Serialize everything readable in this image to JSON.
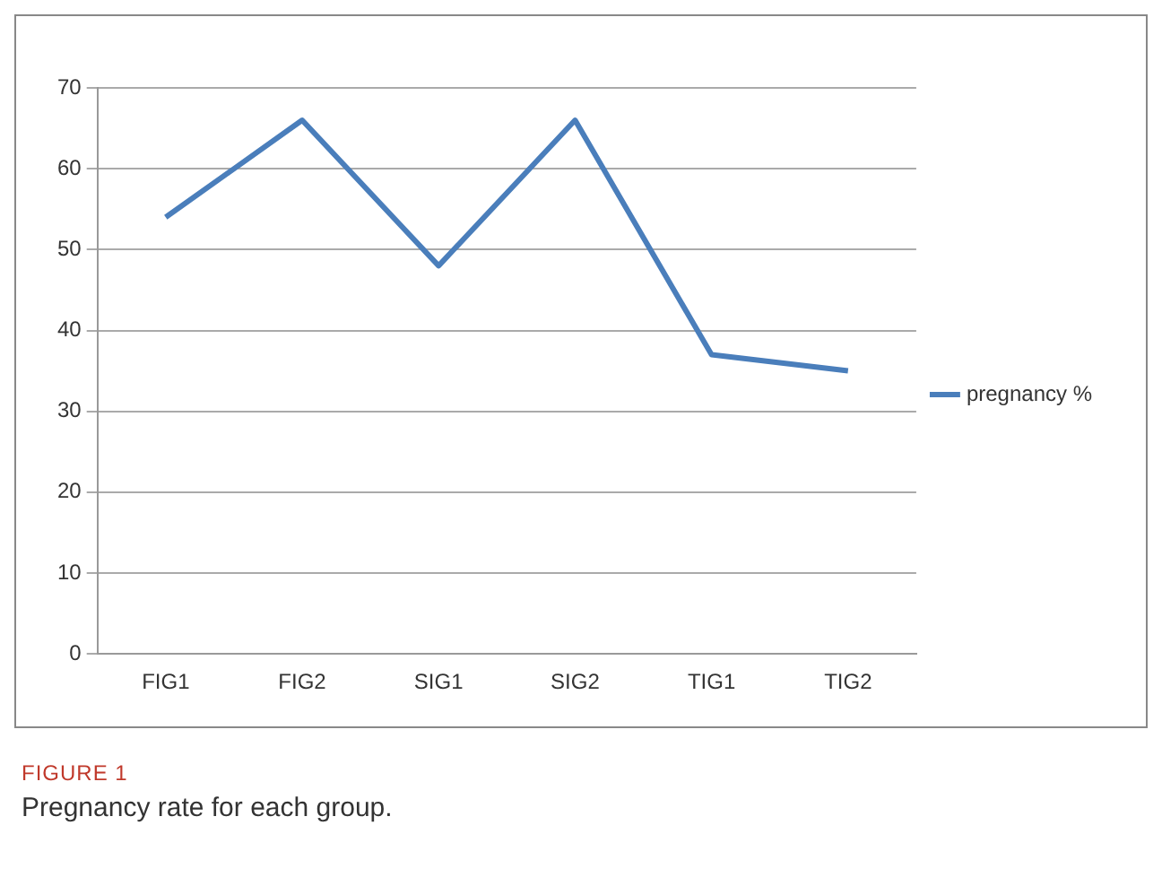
{
  "chart_data": {
    "type": "line",
    "categories": [
      "FIG1",
      "FIG2",
      "SIG1",
      "SIG2",
      "TIG1",
      "TIG2"
    ],
    "series": [
      {
        "name": "pregnancy %",
        "color": "#4a7ebb",
        "values": [
          54,
          66,
          48,
          66,
          37,
          35
        ]
      }
    ],
    "ylim": [
      0,
      70
    ],
    "yticks": [
      0,
      10,
      20,
      30,
      40,
      50,
      60,
      70
    ],
    "grid": "y",
    "legend": "right",
    "marker": "none",
    "line_style": "solid",
    "annotations": [
      "FIGURE 1",
      "Pregnancy rate for each group."
    ]
  }
}
